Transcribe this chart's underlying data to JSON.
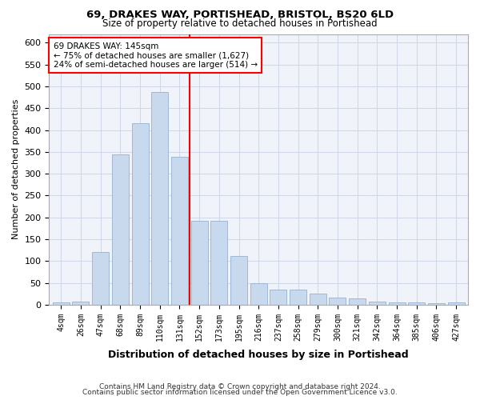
{
  "title1": "69, DRAKES WAY, PORTISHEAD, BRISTOL, BS20 6LD",
  "title2": "Size of property relative to detached houses in Portishead",
  "xlabel": "Distribution of detached houses by size in Portishead",
  "ylabel": "Number of detached properties",
  "footer1": "Contains HM Land Registry data © Crown copyright and database right 2024.",
  "footer2": "Contains public sector information licensed under the Open Government Licence v3.0.",
  "annotation_line1": "69 DRAKES WAY: 145sqm",
  "annotation_line2": "← 75% of detached houses are smaller (1,627)",
  "annotation_line3": "24% of semi-detached houses are larger (514) →",
  "property_size": 145,
  "bar_labels": [
    "4sqm",
    "26sqm",
    "47sqm",
    "68sqm",
    "89sqm",
    "110sqm",
    "131sqm",
    "152sqm",
    "173sqm",
    "195sqm",
    "216sqm",
    "237sqm",
    "258sqm",
    "279sqm",
    "300sqm",
    "321sqm",
    "342sqm",
    "364sqm",
    "385sqm",
    "406sqm",
    "427sqm"
  ],
  "bar_values": [
    5,
    7,
    120,
    345,
    415,
    487,
    338,
    193,
    193,
    112,
    49,
    35,
    35,
    25,
    16,
    15,
    8,
    5,
    5,
    3,
    5
  ],
  "bar_color": "#c9d9ed",
  "bar_edgecolor": "#a0b8d4",
  "vline_x": 145,
  "vline_color": "red",
  "annotation_box_color": "#ffcccc",
  "annotation_box_edgecolor": "red",
  "grid_color": "#d0d8e8",
  "background_color": "#f0f4fa",
  "ylim": [
    0,
    620
  ],
  "yticks": [
    0,
    50,
    100,
    150,
    200,
    250,
    300,
    350,
    400,
    450,
    500,
    550,
    600
  ]
}
